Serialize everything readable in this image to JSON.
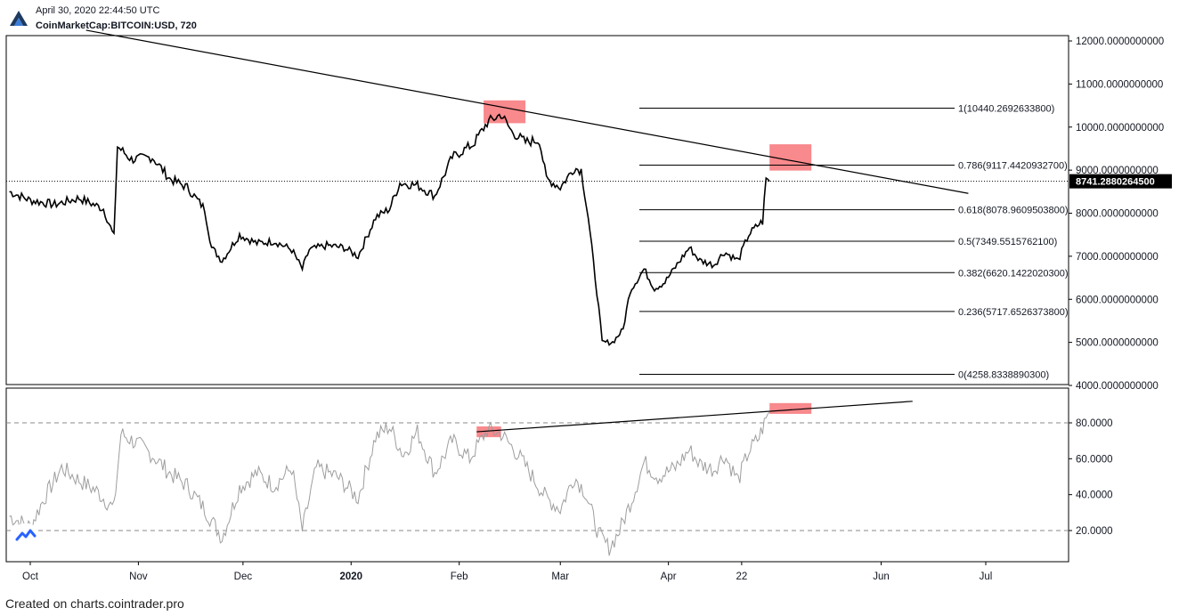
{
  "header": {
    "datetime": "April 30, 2020 22:44:50 UTC",
    "symbol_line": "CoinMarketCap:BITCOIN:USD, 720"
  },
  "footer": {
    "text": "Created on charts.cointrader.pro"
  },
  "colors": {
    "candles": "#000000",
    "highlight": "#f77c80",
    "rsi_line": "#9e9e9e",
    "price_tag_bg": "#000000",
    "price_tag_fg": "#ffffff",
    "axis_text": "#131722",
    "grid_dash": "#888888"
  },
  "icons": {
    "logo": "tradingview-logo-icon",
    "badge": "tradingview-badge-icon"
  },
  "chart_data": [
    {
      "type": "line",
      "pane": "price",
      "series": [
        {
          "values_by_date": [
            [
              "2019-09-25",
              8500
            ],
            [
              "2019-10-01",
              8300
            ],
            [
              "2019-10-08",
              8200
            ],
            [
              "2019-10-15",
              8350
            ],
            [
              "2019-10-22",
              8100
            ],
            [
              "2019-10-25",
              7450
            ],
            [
              "2019-10-26",
              9550
            ],
            [
              "2019-10-30",
              9250
            ],
            [
              "2019-11-05",
              9300
            ],
            [
              "2019-11-10",
              8800
            ],
            [
              "2019-11-15",
              8600
            ],
            [
              "2019-11-20",
              8100
            ],
            [
              "2019-11-22",
              7200
            ],
            [
              "2019-11-25",
              6900
            ],
            [
              "2019-11-30",
              7500
            ],
            [
              "2019-12-05",
              7300
            ],
            [
              "2019-12-10",
              7350
            ],
            [
              "2019-12-15",
              7150
            ],
            [
              "2019-12-18",
              6700
            ],
            [
              "2019-12-20",
              7150
            ],
            [
              "2019-12-25",
              7250
            ],
            [
              "2019-12-30",
              7200
            ],
            [
              "2020-01-03",
              7000
            ],
            [
              "2020-01-08",
              7900
            ],
            [
              "2020-01-12",
              8100
            ],
            [
              "2020-01-15",
              8700
            ],
            [
              "2020-01-20",
              8650
            ],
            [
              "2020-01-25",
              8400
            ],
            [
              "2020-01-30",
              9300
            ],
            [
              "2020-02-05",
              9600
            ],
            [
              "2020-02-09",
              10100
            ],
            [
              "2020-02-13",
              10300
            ],
            [
              "2020-02-16",
              9900
            ],
            [
              "2020-02-20",
              9650
            ],
            [
              "2020-02-24",
              9700
            ],
            [
              "2020-02-26",
              8800
            ],
            [
              "2020-03-01",
              8600
            ],
            [
              "2020-03-05",
              9050
            ],
            [
              "2020-03-07",
              9000
            ],
            [
              "2020-03-09",
              7900
            ],
            [
              "2020-03-12",
              5800
            ],
            [
              "2020-03-13",
              5000
            ],
            [
              "2020-03-16",
              5000
            ],
            [
              "2020-03-19",
              5300
            ],
            [
              "2020-03-21",
              6200
            ],
            [
              "2020-03-25",
              6700
            ],
            [
              "2020-03-28",
              6250
            ],
            [
              "2020-03-31",
              6400
            ],
            [
              "2020-04-03",
              6750
            ],
            [
              "2020-04-07",
              7200
            ],
            [
              "2020-04-10",
              6900
            ],
            [
              "2020-04-14",
              6800
            ],
            [
              "2020-04-17",
              7100
            ],
            [
              "2020-04-21",
              6900
            ],
            [
              "2020-04-24",
              7500
            ],
            [
              "2020-04-27",
              7750
            ],
            [
              "2020-04-28",
              7800
            ],
            [
              "2020-04-29",
              8800
            ],
            [
              "2020-04-30",
              8741
            ]
          ]
        }
      ],
      "y_axis_ticks": [
        "12000.0000000000",
        "11000.0000000000",
        "10000.0000000000",
        "9000.0000000000",
        "8000.0000000000",
        "7000.0000000000",
        "6000.0000000000",
        "5000.0000000000",
        "4000.0000000000"
      ],
      "ylim": [
        4000,
        12000
      ],
      "last_price": {
        "label": "8741.2880264500",
        "value": 8741.288
      },
      "fib_levels": [
        {
          "label": "1(10440.2692633800)",
          "value": 10440.27
        },
        {
          "label": "0.786(9117.4420932700)",
          "value": 9117.44
        },
        {
          "label": "0.618(8078.9609503800)",
          "value": 8078.96
        },
        {
          "label": "0.5(7349.5515762100)",
          "value": 7349.55
        },
        {
          "label": "0.382(6620.1422020300)",
          "value": 6620.14
        },
        {
          "label": "0.236(5717.6526373800)",
          "value": 5717.65
        },
        {
          "label": "0(4258.8338890300)",
          "value": 4258.83
        }
      ],
      "trendline": {
        "from": [
          "2019-10-17",
          12250
        ],
        "to": [
          "2020-06-26",
          8460
        ]
      },
      "highlight_boxes": [
        {
          "x": [
            "2020-02-08",
            "2020-02-20"
          ],
          "y": [
            10090,
            10620
          ]
        },
        {
          "x": [
            "2020-04-30",
            "2020-05-12"
          ],
          "y": [
            8990,
            9600
          ]
        }
      ]
    },
    {
      "type": "line",
      "pane": "rsi",
      "series": [
        {
          "values_by_date": [
            [
              "2019-09-25",
              28
            ],
            [
              "2019-10-01",
              22
            ],
            [
              "2019-10-05",
              38
            ],
            [
              "2019-10-10",
              55
            ],
            [
              "2019-10-15",
              48
            ],
            [
              "2019-10-20",
              42
            ],
            [
              "2019-10-25",
              32
            ],
            [
              "2019-10-27",
              74
            ],
            [
              "2019-11-01",
              68
            ],
            [
              "2019-11-05",
              62
            ],
            [
              "2019-11-10",
              52
            ],
            [
              "2019-11-15",
              45
            ],
            [
              "2019-11-20",
              32
            ],
            [
              "2019-11-25",
              16
            ],
            [
              "2019-11-30",
              44
            ],
            [
              "2019-12-05",
              52
            ],
            [
              "2019-12-10",
              45
            ],
            [
              "2019-12-15",
              55
            ],
            [
              "2019-12-18",
              20
            ],
            [
              "2019-12-22",
              55
            ],
            [
              "2019-12-28",
              50
            ],
            [
              "2020-01-03",
              38
            ],
            [
              "2020-01-08",
              72
            ],
            [
              "2020-01-12",
              78
            ],
            [
              "2020-01-16",
              62
            ],
            [
              "2020-01-20",
              75
            ],
            [
              "2020-01-25",
              52
            ],
            [
              "2020-01-30",
              70
            ],
            [
              "2020-02-04",
              60
            ],
            [
              "2020-02-09",
              76
            ],
            [
              "2020-02-13",
              74
            ],
            [
              "2020-02-18",
              62
            ],
            [
              "2020-02-22",
              50
            ],
            [
              "2020-02-26",
              38
            ],
            [
              "2020-03-01",
              32
            ],
            [
              "2020-03-05",
              50
            ],
            [
              "2020-03-08",
              42
            ],
            [
              "2020-03-12",
              18
            ],
            [
              "2020-03-15",
              10
            ],
            [
              "2020-03-18",
              20
            ],
            [
              "2020-03-22",
              40
            ],
            [
              "2020-03-25",
              58
            ],
            [
              "2020-03-29",
              50
            ],
            [
              "2020-04-03",
              55
            ],
            [
              "2020-04-07",
              65
            ],
            [
              "2020-04-10",
              57
            ],
            [
              "2020-04-14",
              54
            ],
            [
              "2020-04-17",
              62
            ],
            [
              "2020-04-21",
              48
            ],
            [
              "2020-04-24",
              64
            ],
            [
              "2020-04-27",
              72
            ],
            [
              "2020-04-29",
              82
            ],
            [
              "2020-04-30",
              86
            ]
          ]
        }
      ],
      "y_axis_ticks": [
        "80.0000",
        "60.0000",
        "40.0000",
        "20.0000"
      ],
      "ylim": [
        5,
        95
      ],
      "reference_lines": [
        80,
        20
      ],
      "trendline": {
        "from": [
          "2020-02-06",
          75
        ],
        "to": [
          "2020-06-10",
          92
        ]
      },
      "highlight_boxes": [
        {
          "x": [
            "2020-02-06",
            "2020-02-13"
          ],
          "y": [
            72,
            78
          ]
        },
        {
          "x": [
            "2020-04-30",
            "2020-05-12"
          ],
          "y": [
            85,
            91
          ]
        }
      ]
    }
  ],
  "x_axis_ticks": [
    {
      "label": "Oct",
      "date": "2019-10-01",
      "bold": false
    },
    {
      "label": "Nov",
      "date": "2019-11-01",
      "bold": false
    },
    {
      "label": "Dec",
      "date": "2019-12-01",
      "bold": false
    },
    {
      "label": "2020",
      "date": "2020-01-01",
      "bold": true
    },
    {
      "label": "Feb",
      "date": "2020-02-01",
      "bold": false
    },
    {
      "label": "Mar",
      "date": "2020-03-01",
      "bold": false
    },
    {
      "label": "Apr",
      "date": "2020-04-01",
      "bold": false
    },
    {
      "label": "22",
      "date": "2020-04-22",
      "bold": false
    },
    {
      "label": "Jun",
      "date": "2020-06-01",
      "bold": false
    },
    {
      "label": "Jul",
      "date": "2020-07-01",
      "bold": false
    }
  ]
}
